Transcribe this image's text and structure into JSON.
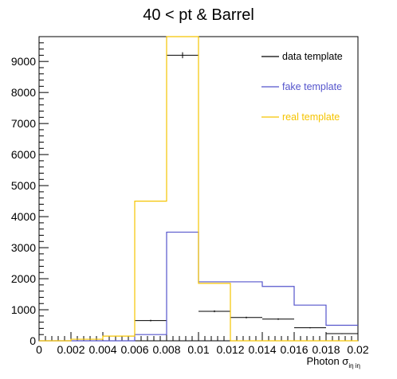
{
  "chart_data": {
    "type": "histogram",
    "title": "40 < pt  & Barrel",
    "xlabel": "Photon σ",
    "xlabel_subscript": "iη iη",
    "xlim": [
      0,
      0.02
    ],
    "ylim": [
      0,
      9800
    ],
    "x_tick_labels": [
      "0",
      "0.002",
      "0.004",
      "0.006",
      "0.008",
      "0.01",
      "0.012",
      "0.014",
      "0.016",
      "0.018",
      "0.02"
    ],
    "y_tick_labels": [
      "0",
      "1000",
      "2000",
      "3000",
      "4000",
      "5000",
      "6000",
      "7000",
      "8000",
      "9000"
    ],
    "bin_edges": [
      0,
      0.002,
      0.004,
      0.006,
      0.008,
      0.01,
      0.012,
      0.014,
      0.016,
      0.018,
      0.02
    ],
    "series": [
      {
        "name": "data template",
        "style": "points",
        "color": "#000000",
        "values": [
          0,
          0,
          0,
          650,
          9200,
          950,
          750,
          700,
          420,
          230
        ],
        "errors": [
          0,
          0,
          0,
          26,
          96,
          31,
          27,
          26,
          20,
          15
        ]
      },
      {
        "name": "fake template",
        "style": "step",
        "color": "#5555cc",
        "values": [
          0,
          0,
          0,
          200,
          3500,
          1900,
          1900,
          1750,
          1150,
          500
        ]
      },
      {
        "name": "real template",
        "style": "step",
        "color": "#f5c400",
        "values": [
          0,
          50,
          150,
          4500,
          9900,
          1850,
          0,
          0,
          0,
          0
        ]
      }
    ],
    "legend_position": "top-right",
    "grid": false
  }
}
